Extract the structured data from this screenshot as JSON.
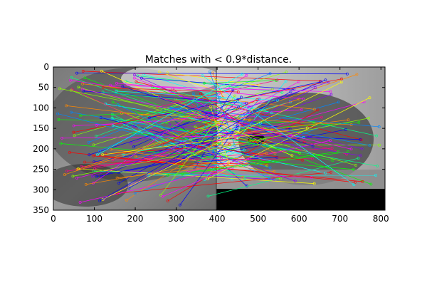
{
  "chart_data": {
    "type": "scatter",
    "title": "Matches with < 0.9*distance.",
    "xlabel": "",
    "ylabel": "",
    "xlim": [
      0,
      810
    ],
    "ylim": [
      350,
      0
    ],
    "x_ticks": [
      0,
      100,
      200,
      300,
      400,
      500,
      600,
      700,
      800
    ],
    "y_ticks": [
      0,
      50,
      100,
      150,
      200,
      250,
      300,
      350
    ],
    "grid": false,
    "legend": "none",
    "image_split_x": 400,
    "right_image_black_below_y": 297
  }
}
